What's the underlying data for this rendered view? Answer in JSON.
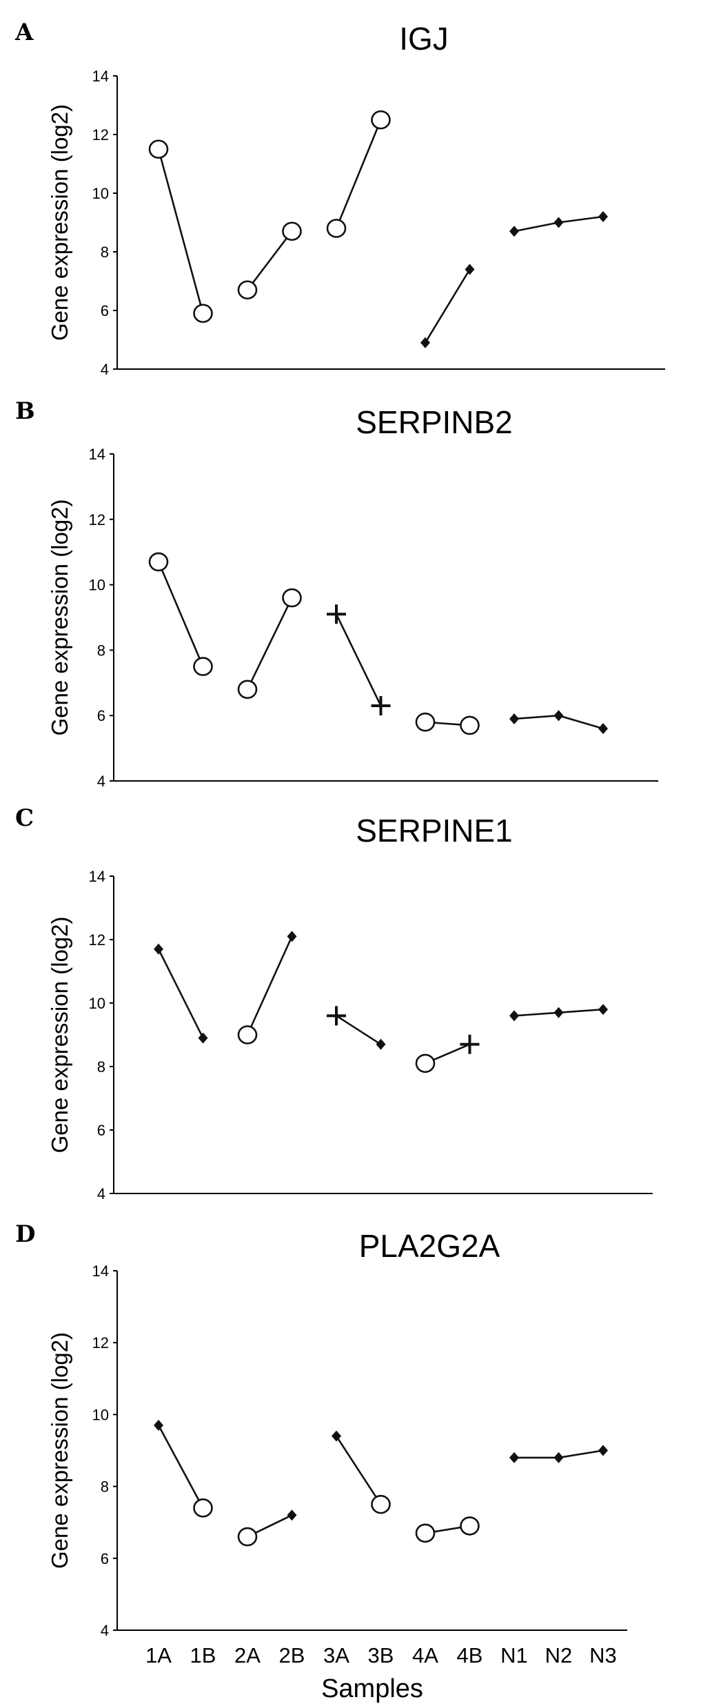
{
  "x_tick_labels": [
    "1A",
    "1B",
    "2A",
    "2B",
    "3A",
    "3B",
    "4A",
    "4B",
    "N1",
    "N2",
    "N3"
  ],
  "chart_data": [
    {
      "panel": "A",
      "type": "line",
      "title": "IGJ",
      "xlabel": "",
      "ylabel": "Gene expression (log2)",
      "ylim": [
        4,
        14
      ],
      "yticks": [
        4,
        6,
        8,
        10,
        12,
        14
      ],
      "show_x_tick_labels": false,
      "marker_shapes": [
        "open-circle",
        "filled-diamond",
        "plus"
      ],
      "series": [
        {
          "marker": "open-circle",
          "x": [
            "1A",
            "1B"
          ],
          "values": [
            11.5,
            5.9
          ]
        },
        {
          "marker": "open-circle",
          "x": [
            "2A",
            "2B"
          ],
          "values": [
            6.7,
            8.7
          ]
        },
        {
          "marker": "open-circle",
          "x": [
            "3A",
            "3B"
          ],
          "values": [
            8.8,
            12.5
          ]
        },
        {
          "marker": "filled-diamond",
          "x": [
            "4A",
            "4B"
          ],
          "values": [
            4.9,
            7.4
          ]
        },
        {
          "marker": "filled-diamond",
          "x": [
            "N1",
            "N2",
            "N3"
          ],
          "values": [
            8.7,
            9.0,
            9.2
          ]
        }
      ]
    },
    {
      "panel": "B",
      "type": "line",
      "title": "SERPINB2",
      "xlabel": "",
      "ylabel": "Gene expression (log2)",
      "ylim": [
        4,
        14
      ],
      "yticks": [
        4,
        6,
        8,
        10,
        12,
        14
      ],
      "show_x_tick_labels": false,
      "series": [
        {
          "marker": "open-circle",
          "x": [
            "1A",
            "1B"
          ],
          "values": [
            10.7,
            7.5
          ]
        },
        {
          "marker": "open-circle",
          "x": [
            "2A",
            "2B"
          ],
          "values": [
            6.8,
            9.6
          ]
        },
        {
          "marker": "plus",
          "x": [
            "3A",
            "3B"
          ],
          "values": [
            9.1,
            6.3
          ]
        },
        {
          "marker": "open-circle",
          "x": [
            "4A",
            "4B"
          ],
          "values": [
            5.8,
            5.7
          ]
        },
        {
          "marker": "filled-diamond",
          "x": [
            "N1",
            "N2",
            "N3"
          ],
          "values": [
            5.9,
            6.0,
            5.6
          ]
        }
      ]
    },
    {
      "panel": "C",
      "type": "line",
      "title": "SERPINE1",
      "xlabel": "",
      "ylabel": "Gene expression (log2)",
      "ylim": [
        4,
        14
      ],
      "yticks": [
        4,
        6,
        8,
        10,
        12,
        14
      ],
      "show_x_tick_labels": false,
      "series": [
        {
          "marker": "filled-diamond",
          "x": [
            "1A",
            "1B"
          ],
          "values": [
            11.7,
            8.9
          ]
        },
        {
          "marker": "open-circle",
          "x": [
            "2A"
          ],
          "values": [
            9.0
          ]
        },
        {
          "marker": "filled-diamond",
          "x": [
            "2B"
          ],
          "values": [
            12.1
          ]
        },
        {
          "marker": "plus",
          "x": [
            "3A"
          ],
          "values": [
            9.6
          ]
        },
        {
          "marker": "filled-diamond",
          "x": [
            "3B"
          ],
          "values": [
            8.7
          ]
        },
        {
          "marker": "open-circle",
          "x": [
            "4A"
          ],
          "values": [
            8.1
          ]
        },
        {
          "marker": "plus",
          "x": [
            "4B"
          ],
          "values": [
            8.7
          ]
        },
        {
          "marker": "filled-diamond",
          "x": [
            "N1",
            "N2",
            "N3"
          ],
          "values": [
            9.6,
            9.7,
            9.8
          ]
        }
      ],
      "connectors": [
        [
          "1A",
          "1B"
        ],
        [
          "2A",
          "2B"
        ],
        [
          "3A",
          "3B"
        ],
        [
          "4A",
          "4B"
        ],
        [
          "N1",
          "N2",
          "N3"
        ]
      ]
    },
    {
      "panel": "D",
      "type": "line",
      "title": "PLA2G2A",
      "xlabel": "Samples",
      "ylabel": "Gene expression (log2)",
      "ylim": [
        4,
        14
      ],
      "yticks": [
        4,
        6,
        8,
        10,
        12,
        14
      ],
      "show_x_tick_labels": true,
      "series": [
        {
          "marker": "filled-diamond",
          "x": [
            "1A"
          ],
          "values": [
            9.7
          ]
        },
        {
          "marker": "open-circle",
          "x": [
            "1B"
          ],
          "values": [
            7.4
          ]
        },
        {
          "marker": "open-circle",
          "x": [
            "2A"
          ],
          "values": [
            6.6
          ]
        },
        {
          "marker": "filled-diamond",
          "x": [
            "2B"
          ],
          "values": [
            7.2
          ]
        },
        {
          "marker": "filled-diamond",
          "x": [
            "3A"
          ],
          "values": [
            9.4
          ]
        },
        {
          "marker": "open-circle",
          "x": [
            "3B"
          ],
          "values": [
            7.5
          ]
        },
        {
          "marker": "open-circle",
          "x": [
            "4A",
            "4B"
          ],
          "values": [
            6.7,
            6.9
          ]
        },
        {
          "marker": "filled-diamond",
          "x": [
            "N1",
            "N2",
            "N3"
          ],
          "values": [
            8.8,
            8.8,
            9.0
          ]
        }
      ],
      "connectors": [
        [
          "1A",
          "1B"
        ],
        [
          "2A",
          "2B"
        ],
        [
          "3A",
          "3B"
        ],
        [
          "4A",
          "4B"
        ],
        [
          "N1",
          "N2",
          "N3"
        ]
      ]
    }
  ]
}
